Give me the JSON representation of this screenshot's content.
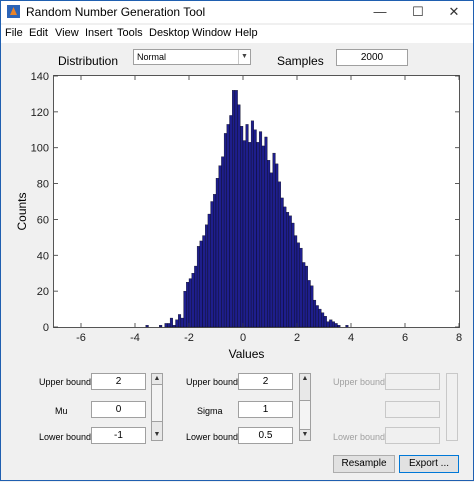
{
  "window": {
    "title": "Random Number Generation Tool",
    "minimize": "—",
    "maximize": "☐",
    "close": "✕"
  },
  "menu": [
    "File",
    "Edit",
    "View",
    "Insert",
    "Tools",
    "Desktop",
    "Window",
    "Help"
  ],
  "controls": {
    "distribution_label": "Distribution",
    "distribution_value": "Normal",
    "samples_label": "Samples",
    "samples_value": "2000"
  },
  "params": [
    {
      "upper_label": "Upper bound",
      "upper_value": "2",
      "mid_label": "Mu",
      "mid_value": "0",
      "lower_label": "Lower bound",
      "lower_value": "-1",
      "enabled": true
    },
    {
      "upper_label": "Upper bound",
      "upper_value": "2",
      "mid_label": "Sigma",
      "mid_value": "1",
      "lower_label": "Lower bound",
      "lower_value": "0.5",
      "enabled": true
    },
    {
      "upper_label": "Upper bound",
      "upper_value": "",
      "mid_label": "",
      "mid_value": "",
      "lower_label": "Lower bound",
      "lower_value": "",
      "enabled": false
    }
  ],
  "buttons": {
    "resample": "Resample",
    "export": "Export ..."
  },
  "chart_data": {
    "type": "bar",
    "xlabel": "Values",
    "ylabel": "Counts",
    "xlim": [
      -7,
      8
    ],
    "ylim": [
      0,
      140
    ],
    "xticks": [
      -6,
      -4,
      -2,
      0,
      2,
      4,
      6,
      8
    ],
    "yticks": [
      0,
      20,
      40,
      60,
      80,
      100,
      120,
      140
    ],
    "bin_width": 0.1,
    "bin_start": -3.6,
    "values": [
      1,
      0,
      0,
      0,
      0,
      1,
      0,
      2,
      2,
      5,
      1,
      4,
      7,
      5,
      20,
      25,
      27,
      30,
      34,
      45,
      48,
      51,
      57,
      63,
      70,
      74,
      83,
      90,
      95,
      108,
      113,
      118,
      132,
      132,
      124,
      112,
      104,
      113,
      103,
      115,
      110,
      103,
      109,
      101,
      106,
      93,
      86,
      97,
      91,
      81,
      72,
      67,
      64,
      62,
      58,
      51,
      47,
      44,
      36,
      34,
      26,
      23,
      15,
      12,
      10,
      8,
      6,
      3,
      4,
      3,
      2,
      1,
      0,
      0,
      1
    ],
    "bar_color": "#1e1e8c"
  }
}
